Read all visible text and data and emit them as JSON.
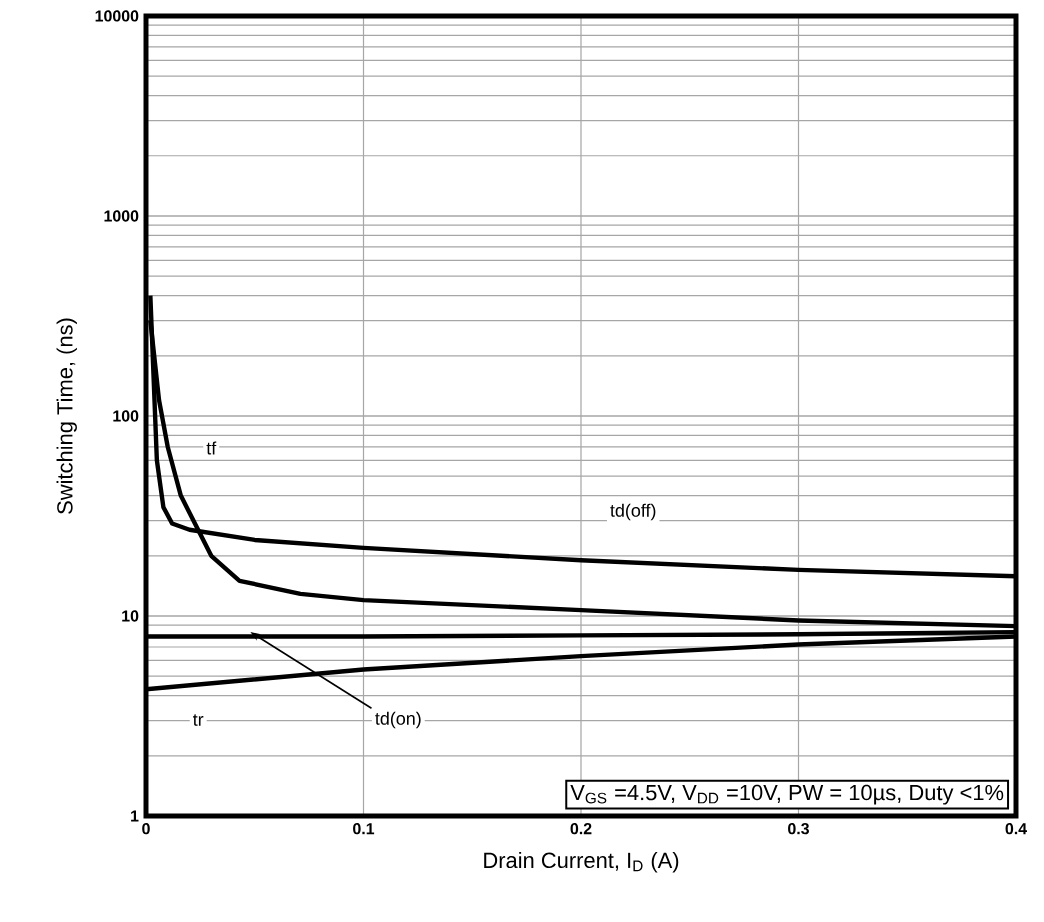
{
  "chart_data": {
    "type": "line",
    "xlabel": "Drain Current,  I$_{D}$ (A)",
    "ylabel": "Switching Time, (ns)",
    "log": "y",
    "grid": true,
    "marker": "none",
    "line_style": "solid",
    "xlim": [
      0,
      0.4
    ],
    "ylim": [
      1,
      10000
    ],
    "xticks": [
      0,
      0.1,
      0.2,
      0.3,
      0.4
    ],
    "yticks": [
      1,
      10,
      100,
      1000,
      10000
    ],
    "series": [
      {
        "name": "tf",
        "color": "#000000",
        "x": [
          0.002,
          0.006,
          0.01,
          0.016,
          0.03,
          0.043,
          0.071,
          0.1,
          0.2,
          0.3,
          0.4
        ],
        "values": [
          300,
          120,
          70,
          40,
          20,
          15,
          12.9,
          12,
          10.7,
          9.5,
          8.9
        ]
      },
      {
        "name": "td(off)",
        "color": "#000000",
        "x": [
          0.002,
          0.005,
          0.008,
          0.012,
          0.02,
          0.05,
          0.1,
          0.2,
          0.3,
          0.4
        ],
        "values": [
          400,
          60,
          35,
          29,
          27,
          24,
          21.9,
          19,
          17,
          15.8
        ]
      },
      {
        "name": "td(on)",
        "color": "#000000",
        "x": [
          0,
          0.1,
          0.2,
          0.3,
          0.4
        ],
        "values": [
          7.9,
          7.9,
          8,
          8.1,
          8.3
        ]
      },
      {
        "name": "tr",
        "color": "#000000",
        "x": [
          0,
          0.1,
          0.2,
          0.3,
          0.4
        ],
        "values": [
          4.3,
          5.4,
          6.3,
          7.2,
          7.9
        ]
      }
    ],
    "annotations": [
      "V$_{GS}$ =4.5V, V$_{DD}$ =10V, PW = 10µs, Duty <1%"
    ]
  }
}
